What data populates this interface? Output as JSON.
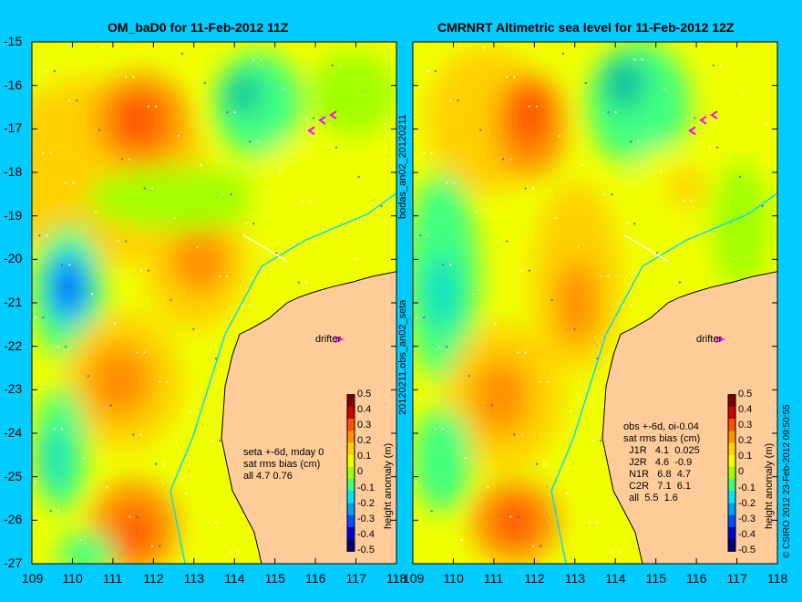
{
  "panels": [
    {
      "title": "OM_baD0 for 11-Feb-2012 11Z",
      "drifter_label": "drifter",
      "stats": [
        "seta +-6d, mday 0",
        "sat rms bias (cm)",
        "all 4.7 0.76"
      ]
    },
    {
      "title": "CMRNRT Altimetric sea level  for 11-Feb-2012 12Z",
      "drifter_label": "drifter",
      "stats": [
        "obs +-6d, oi-0.04",
        "sat rms bias (cm)",
        "  J1R   4.1  0.025",
        "  J2R   4.6  -0.9",
        "  N1R   6.8  4.7",
        "  C2R   7.1  6.1",
        "  all  5.5  1.6"
      ]
    }
  ],
  "y_ticks": [
    "-15",
    "-16",
    "-17",
    "-18",
    "-19",
    "-20",
    "-21",
    "-22",
    "-23",
    "-24",
    "-25",
    "-26",
    "-27"
  ],
  "x_ticks": [
    "109",
    "110",
    "111",
    "112",
    "113",
    "114",
    "115",
    "116",
    "117",
    "118"
  ],
  "colorbar": {
    "ticks": [
      "0.5",
      "0.4",
      "0.3",
      "0.2",
      "0.1",
      "0",
      "-0.1",
      "-0.2",
      "-0.3",
      "-0.4",
      "-0.5"
    ],
    "label": "height anomaly (m)",
    "colors": [
      "#00007f",
      "#0000cc",
      "#0050ff",
      "#00a0ff",
      "#00e0ff",
      "#40ff80",
      "#a0ff00",
      "#f0ff00",
      "#ffd000",
      "#ff9000",
      "#ff5000",
      "#cc0000",
      "#800000"
    ]
  },
  "center_labels": {
    "top": "bodas_an02_20120211",
    "bottom": "20120211.obs_an02_seta"
  },
  "copyright": "© CSIRO 2012   23-Feb-2012 09:50:55",
  "colors": {
    "background": "#00ccff",
    "land": "#ffcc99",
    "sea_base": "#f4e642"
  }
}
